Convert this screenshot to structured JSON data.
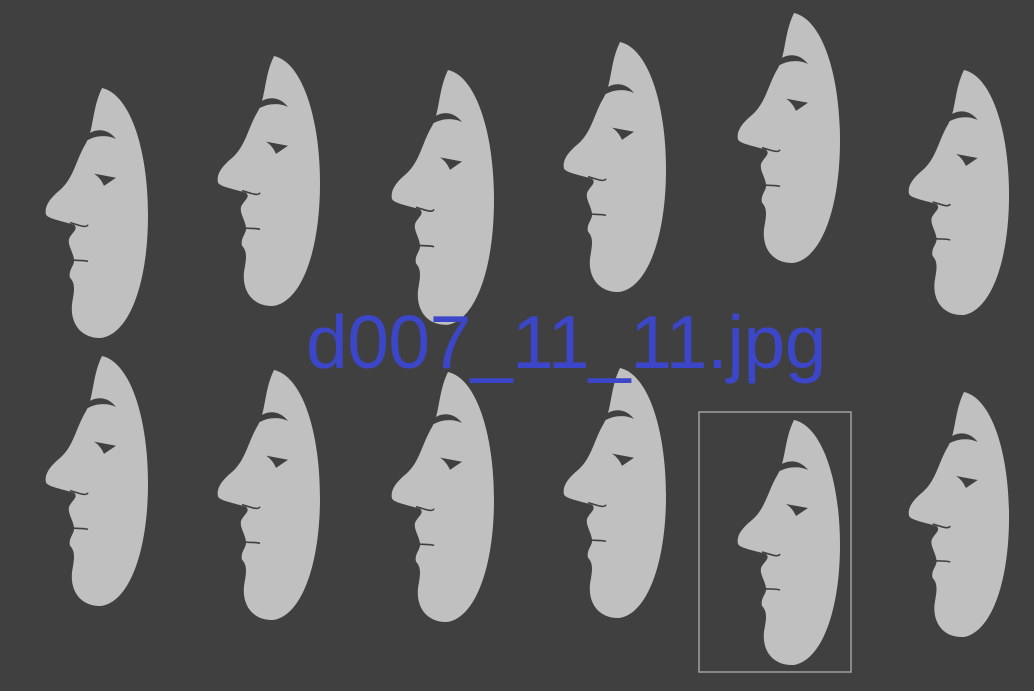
{
  "filename_label": "d007_11_11.jpg",
  "colors": {
    "background": "#404040",
    "face_fill": "#c0c0c0",
    "feature_ink": "#404040",
    "label_text": "#3c46c8",
    "selection_border": "#a0a0a0"
  },
  "grid": {
    "rows": 2,
    "columns": 6,
    "selected_row": 2,
    "selected_column": 5
  },
  "faces": [
    {
      "row": 1,
      "col": 1,
      "facing": "left"
    },
    {
      "row": 1,
      "col": 2,
      "facing": "left"
    },
    {
      "row": 1,
      "col": 3,
      "facing": "left"
    },
    {
      "row": 1,
      "col": 4,
      "facing": "left"
    },
    {
      "row": 1,
      "col": 5,
      "facing": "left"
    },
    {
      "row": 1,
      "col": 6,
      "facing": "left"
    },
    {
      "row": 2,
      "col": 1,
      "facing": "left"
    },
    {
      "row": 2,
      "col": 2,
      "facing": "left"
    },
    {
      "row": 2,
      "col": 3,
      "facing": "left"
    },
    {
      "row": 2,
      "col": 4,
      "facing": "left"
    },
    {
      "row": 2,
      "col": 5,
      "facing": "left",
      "selected": true
    },
    {
      "row": 2,
      "col": 6,
      "facing": "left"
    }
  ]
}
